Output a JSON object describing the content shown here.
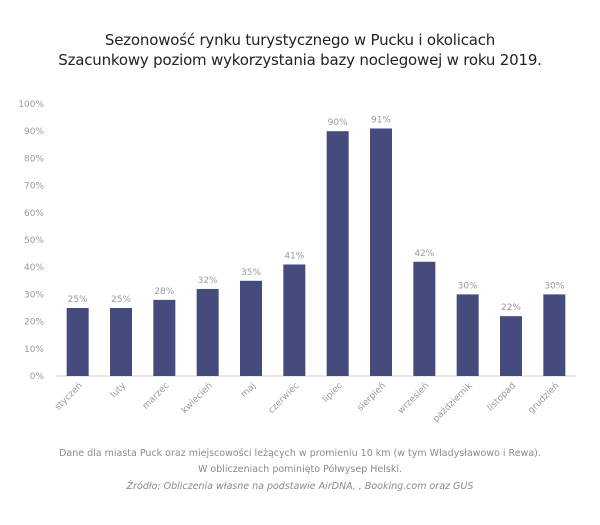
{
  "chart_data": {
    "type": "bar",
    "title": "Sezonowość rynku turystycznego w Pucku i okolicach",
    "subtitle": "Szacunkowy poziom wykorzystania bazy noclegowej w roku 2019.",
    "categories": [
      "styczeń",
      "luty",
      "marzec",
      "kwiecień",
      "maj",
      "czerwiec",
      "lipiec",
      "sierpień",
      "wrzesień",
      "październik",
      "listopad",
      "grudzień"
    ],
    "values": [
      25,
      25,
      28,
      32,
      35,
      41,
      90,
      91,
      42,
      30,
      22,
      30
    ],
    "value_labels": [
      "25%",
      "25%",
      "28%",
      "32%",
      "35%",
      "41%",
      "90%",
      "91%",
      "42%",
      "30%",
      "22%",
      "30%"
    ],
    "y_ticks": [
      0,
      10,
      20,
      30,
      40,
      50,
      60,
      70,
      80,
      90,
      100
    ],
    "y_tick_labels": [
      "0%",
      "10%",
      "20%",
      "30%",
      "40%",
      "50%",
      "60%",
      "70%",
      "80%",
      "90%",
      "100%"
    ],
    "ylim": [
      0,
      100
    ],
    "grid": false,
    "bar_color": "#464b7e",
    "xlabel": "",
    "ylabel": ""
  },
  "footnotes": {
    "line1": "Dane dla miasta Puck oraz miejscowości leżących w promieniu 10 km (w tym Władysławowo i Rewa).",
    "line2": "W obliczeniach pominięto Półwysep Helski.",
    "source": "Źródło: Obliczenia własne na podstawie AirDNA, , Booking.com oraz GUS"
  }
}
